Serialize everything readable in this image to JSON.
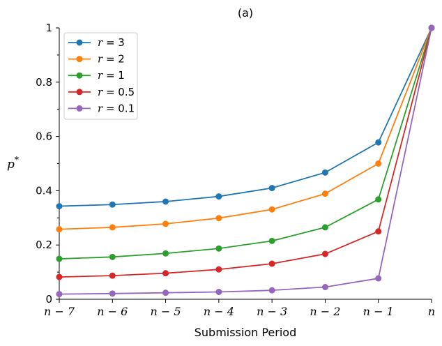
{
  "chart_data": {
    "type": "line",
    "title": "(a)",
    "xlabel": "Submission Period",
    "ylabel_var": "p",
    "ylabel_sup": "*",
    "categories": [
      "n − 7",
      "n − 6",
      "n − 5",
      "n − 4",
      "n − 3",
      "n − 2",
      "n − 1",
      "n"
    ],
    "ylim": [
      0,
      1
    ],
    "yticks": [
      0,
      0.2,
      0.4,
      0.6,
      0.8,
      1
    ],
    "ytick_labels": [
      "0",
      "0.2",
      "0.4",
      "0.6",
      "0.8",
      "1"
    ],
    "legend_position": "top-left",
    "series": [
      {
        "name": "r = 3",
        "var": "r",
        "eq": "= 3",
        "color": "#1f77b4",
        "values": [
          0.343,
          0.349,
          0.36,
          0.379,
          0.41,
          0.467,
          0.578,
          1.0
        ]
      },
      {
        "name": "r = 2",
        "var": "r",
        "eq": "= 2",
        "color": "#ff7f0e",
        "values": [
          0.258,
          0.265,
          0.278,
          0.299,
          0.331,
          0.389,
          0.5,
          1.0
        ]
      },
      {
        "name": "r = 1",
        "var": "r",
        "eq": "= 1",
        "color": "#2ca02c",
        "values": [
          0.149,
          0.156,
          0.169,
          0.187,
          0.215,
          0.265,
          0.368,
          1.0
        ]
      },
      {
        "name": "r = 0.5",
        "var": "r",
        "eq": "= 0.5",
        "color": "#d62728",
        "values": [
          0.082,
          0.087,
          0.096,
          0.11,
          0.131,
          0.167,
          0.25,
          1.0
        ]
      },
      {
        "name": "r = 0.1",
        "var": "r",
        "eq": "= 0.1",
        "color": "#9467bd",
        "values": [
          0.019,
          0.021,
          0.024,
          0.027,
          0.033,
          0.045,
          0.077,
          1.0
        ]
      }
    ]
  }
}
